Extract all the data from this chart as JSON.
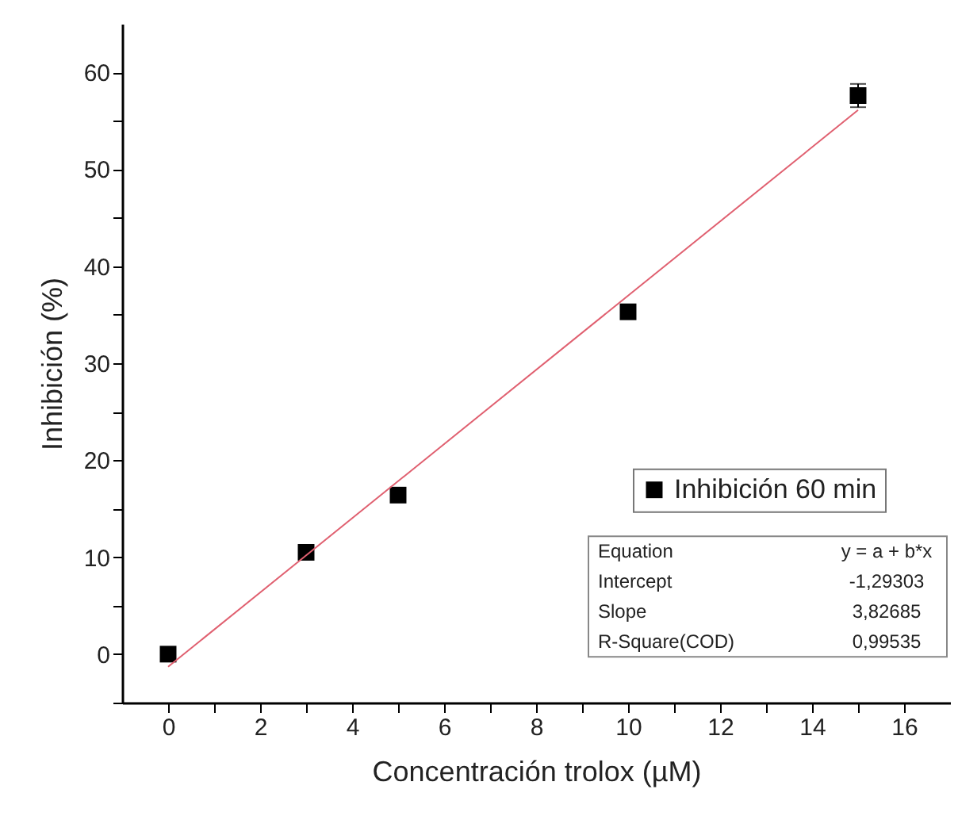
{
  "chart_data": {
    "type": "scatter",
    "xlabel": "Concentración trolox (µM)",
    "ylabel": "Inhibición (%)",
    "xlim": [
      -1,
      17
    ],
    "ylim": [
      -5,
      65
    ],
    "xticks": [
      0,
      {
        "value": 1,
        "label": null
      },
      2,
      {
        "value": 3,
        "label": null
      },
      4,
      {
        "value": 5,
        "label": null
      },
      6,
      {
        "value": 7,
        "label": null
      },
      8,
      {
        "value": 9,
        "label": null
      },
      10,
      {
        "value": 11,
        "label": null
      },
      12,
      {
        "value": 13,
        "label": null
      },
      14,
      {
        "value": 15,
        "label": null
      },
      16
    ],
    "yticks": [
      {
        "value": -5,
        "label": null
      },
      0,
      {
        "value": 5,
        "label": null
      },
      10,
      {
        "value": 15,
        "label": null
      },
      20,
      {
        "value": 25,
        "label": null
      },
      30,
      {
        "value": 35,
        "label": null
      },
      40,
      {
        "value": 45,
        "label": null
      },
      50,
      {
        "value": 55,
        "label": null
      },
      60
    ],
    "legend": "right",
    "grid": false,
    "series": [
      {
        "name": "Inhibición 60 min",
        "type": "scatter",
        "marker": "square",
        "color": "#000000",
        "x": [
          0,
          3,
          5,
          10,
          15
        ],
        "values": [
          0,
          10.5,
          16.4,
          35.3,
          57.6
        ],
        "errors": [
          null,
          null,
          null,
          null,
          1.2
        ]
      },
      {
        "type": "line",
        "marker": "none",
        "color": "#e06070",
        "x": [
          0,
          15
        ],
        "values": [
          -1.3,
          56.1
        ]
      }
    ],
    "annotations": [
      "Equation",
      "y = a + b*x",
      "Intercept",
      "-1,29303",
      "Slope",
      "3,82685",
      "R-Square(COD)",
      "0,99535"
    ]
  }
}
